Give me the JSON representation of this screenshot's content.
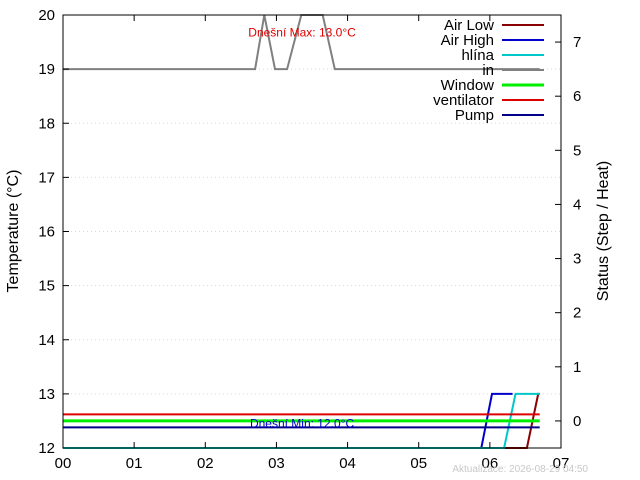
{
  "chart_data": {
    "type": "line",
    "x_axis": {
      "range": [
        0,
        7
      ],
      "tick_labels": [
        "00",
        "01",
        "02",
        "03",
        "04",
        "05",
        "06",
        "07"
      ]
    },
    "y_left": {
      "label": "Temperature (°C)",
      "range": [
        12,
        20
      ],
      "ticks": [
        12,
        13,
        14,
        15,
        16,
        17,
        18,
        19,
        20
      ]
    },
    "y_right": {
      "label": "Status (Step / Heat)",
      "range": [
        -0.5,
        7.5
      ],
      "ticks": [
        0,
        1,
        2,
        3,
        4,
        5,
        6,
        7
      ]
    },
    "grid": true,
    "legend_position": "top-right",
    "series": [
      {
        "name": "Air Low",
        "color": "#8b0000",
        "axis": "left",
        "points": [
          [
            0,
            12
          ],
          [
            6.52,
            12
          ],
          [
            6.68,
            13
          ],
          [
            6.7,
            13
          ]
        ]
      },
      {
        "name": "Air High",
        "color": "#0000cc",
        "axis": "left",
        "points": [
          [
            0,
            12
          ],
          [
            5.88,
            12
          ],
          [
            6.03,
            13
          ],
          [
            6.32,
            13
          ]
        ]
      },
      {
        "name": "hlína",
        "color": "#00c8c8",
        "axis": "left",
        "points": [
          [
            0,
            12
          ],
          [
            6.2,
            12
          ],
          [
            6.36,
            13
          ],
          [
            6.7,
            13
          ]
        ]
      },
      {
        "name": "in",
        "color": "#808080",
        "axis": "left",
        "points": [
          [
            0,
            19
          ],
          [
            2.7,
            19
          ],
          [
            2.83,
            20
          ],
          [
            2.98,
            19
          ],
          [
            3.15,
            19
          ],
          [
            3.35,
            20
          ],
          [
            3.65,
            20
          ],
          [
            3.82,
            19
          ],
          [
            6.7,
            19
          ]
        ]
      },
      {
        "name": "Window",
        "color": "#00ee00",
        "axis": "right",
        "points": [
          [
            0,
            0
          ],
          [
            6.7,
            0
          ]
        ]
      },
      {
        "name": "ventilator",
        "color": "#dd0000",
        "axis": "right",
        "points": [
          [
            0,
            0.12
          ],
          [
            6.7,
            0.12
          ]
        ]
      },
      {
        "name": "Pump",
        "color": "#000088",
        "axis": "right",
        "points": [
          [
            0,
            -0.12
          ],
          [
            6.7,
            -0.12
          ]
        ]
      }
    ],
    "annotations": [
      {
        "text": "Dnešní Max: 13.0°C",
        "color": "#dd0000",
        "x": 3.36,
        "y": 19.6
      },
      {
        "text": "Dnešní Min: 12.0°C",
        "color": "#0000cc",
        "x": 3.36,
        "y": 12.38
      }
    ],
    "footer": "Aktualizace: 2026-08-29 04:50"
  }
}
